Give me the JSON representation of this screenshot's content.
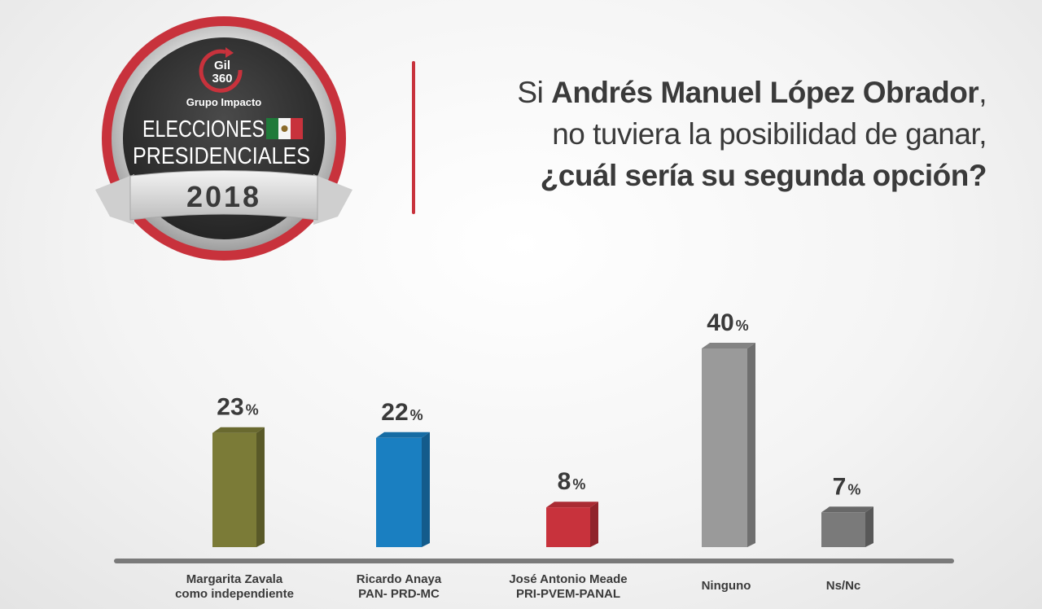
{
  "badge": {
    "brand": "Gil",
    "brand_number": "360",
    "company": "Grupo Impacto",
    "line1": "ELECCIONES",
    "line2": "PRESIDENCIALES",
    "year": "2018"
  },
  "question": {
    "line1_prefix": "Si ",
    "line1_bold": "Andrés Manuel López Obrador",
    "line1_suffix": ",",
    "line2": "no tuviera la posibilidad de ganar,",
    "line3": "¿cuál sería su segunda opción?"
  },
  "colors": {
    "accent": "#c8323c",
    "zavala": "#7b7b37",
    "anaya": "#1a7fc1",
    "meade": "#c8323c",
    "ninguno": "#9a9a9a",
    "nsnc": "#7a7a7a"
  },
  "chart_data": {
    "type": "bar",
    "title": "",
    "xlabel": "",
    "ylabel": "",
    "ylim": [
      0,
      40
    ],
    "categories": [
      [
        "Margarita Zavala",
        "como independiente"
      ],
      [
        "Ricardo Anaya",
        "PAN- PRD-MC"
      ],
      [
        "José Antonio Meade",
        "PRI-PVEM-PANAL"
      ],
      [
        "Ninguno"
      ],
      [
        "Ns/Nc"
      ]
    ],
    "values": [
      23,
      22,
      8,
      40,
      7
    ],
    "value_suffix": "%",
    "bar_colors": [
      "#7b7b37",
      "#1a7fc1",
      "#c8323c",
      "#9a9a9a",
      "#7a7a7a"
    ]
  }
}
